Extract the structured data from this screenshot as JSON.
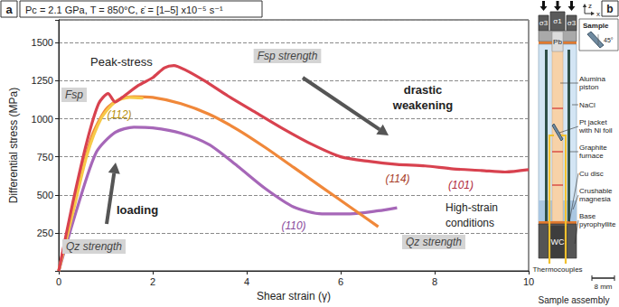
{
  "chart_data": {
    "type": "line",
    "panel_label": "a",
    "subtitle": "Pc = 2.1 GPa, T = 850°C, ε̇ = [1–5] x10⁻⁵ s⁻¹",
    "xlabel": "Shear strain (γ)",
    "ylabel": "Differential stress (MPa)",
    "xlim": [
      0,
      10
    ],
    "xticks": [
      0,
      2,
      4,
      6,
      8,
      10
    ],
    "ylim": [
      0,
      1650
    ],
    "yticks": [
      250,
      500,
      750,
      1000,
      1250,
      1500
    ],
    "grid": true,
    "series": [
      {
        "name": "(110)",
        "color": "#a667b8",
        "x": [
          0,
          0.4,
          0.8,
          1.2,
          1.6,
          2.0,
          2.6,
          3.2,
          3.8,
          4.4,
          5.0,
          5.6,
          6.2,
          6.8,
          7.2
        ],
        "values": [
          0,
          420,
          780,
          910,
          945,
          940,
          905,
          830,
          690,
          540,
          420,
          375,
          375,
          395,
          415
        ]
      },
      {
        "name": "(114)",
        "color": "#f0883a",
        "x": [
          0,
          0.35,
          0.7,
          1.0,
          1.3,
          1.6,
          2.0,
          2.6,
          3.2,
          3.8,
          4.4,
          5.0,
          5.6,
          6.2,
          6.8
        ],
        "values": [
          0,
          480,
          880,
          1060,
          1130,
          1145,
          1140,
          1100,
          1030,
          930,
          810,
          680,
          550,
          420,
          290
        ]
      },
      {
        "name": "(112)",
        "color": "#f7c948",
        "x": [
          0,
          0.3,
          0.6,
          0.9,
          1.2,
          1.5,
          1.8
        ],
        "values": [
          0,
          380,
          760,
          1000,
          1110,
          1140,
          1135
        ]
      },
      {
        "name": "(101)",
        "color": "#d8424f",
        "x": [
          0,
          0.3,
          0.6,
          0.85,
          1.05,
          1.2,
          1.35,
          1.7,
          2.0,
          2.25,
          2.45,
          2.7,
          3.1,
          3.6,
          4.2,
          4.8,
          5.4,
          6.0,
          6.6,
          7.2,
          7.8,
          8.4,
          9.0,
          9.5,
          10
        ],
        "values": [
          0,
          450,
          850,
          1100,
          1165,
          1110,
          1140,
          1220,
          1270,
          1335,
          1350,
          1320,
          1250,
          1150,
          1040,
          930,
          830,
          750,
          720,
          700,
          690,
          670,
          660,
          650,
          665
        ]
      }
    ],
    "annotations": [
      "Peak-stress",
      "drastic\nweakening",
      "loading",
      "High-strain\nconditions"
    ],
    "labels": [
      "Fsp strength",
      "Fsp",
      "Qz strength",
      "Qz strength"
    ]
  },
  "diagram": {
    "panel_label": "b",
    "axes": {
      "vertical": "z",
      "horizontal": "x"
    },
    "loads": [
      "σ3",
      "σ1",
      "σ3"
    ],
    "inset": {
      "title": "Sample",
      "angle": "45°"
    },
    "column_labels": [
      "Pb",
      "WC"
    ],
    "labels": [
      "Alumina\npiston",
      "NaCl",
      "Pt jacket\nwith Ni foil",
      "Graphite\nfurnace",
      "Cu disc",
      "Crushable\nmagnesia",
      "Base\npyrophyllite"
    ],
    "thermocouples": "Thermocouples",
    "scale_bar": "8 mm",
    "title": "Sample assembly"
  }
}
